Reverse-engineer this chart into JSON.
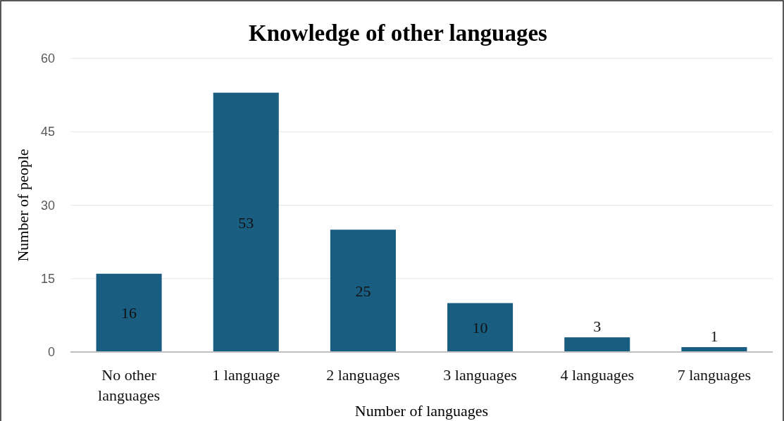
{
  "chart_data": {
    "type": "bar",
    "title": "Knowledge of other languages",
    "xlabel": "Number of languages",
    "ylabel": "Number of people",
    "categories": [
      "No other languages",
      "1 language",
      "2 languages",
      "3 languages",
      "4 languages",
      "7 languages"
    ],
    "values": [
      16,
      53,
      25,
      10,
      3,
      1
    ],
    "color": "#195e80",
    "ylim": [
      0,
      60
    ],
    "yticks": [
      0,
      15,
      30,
      45,
      60
    ],
    "grid": "y",
    "data_labels": true
  }
}
